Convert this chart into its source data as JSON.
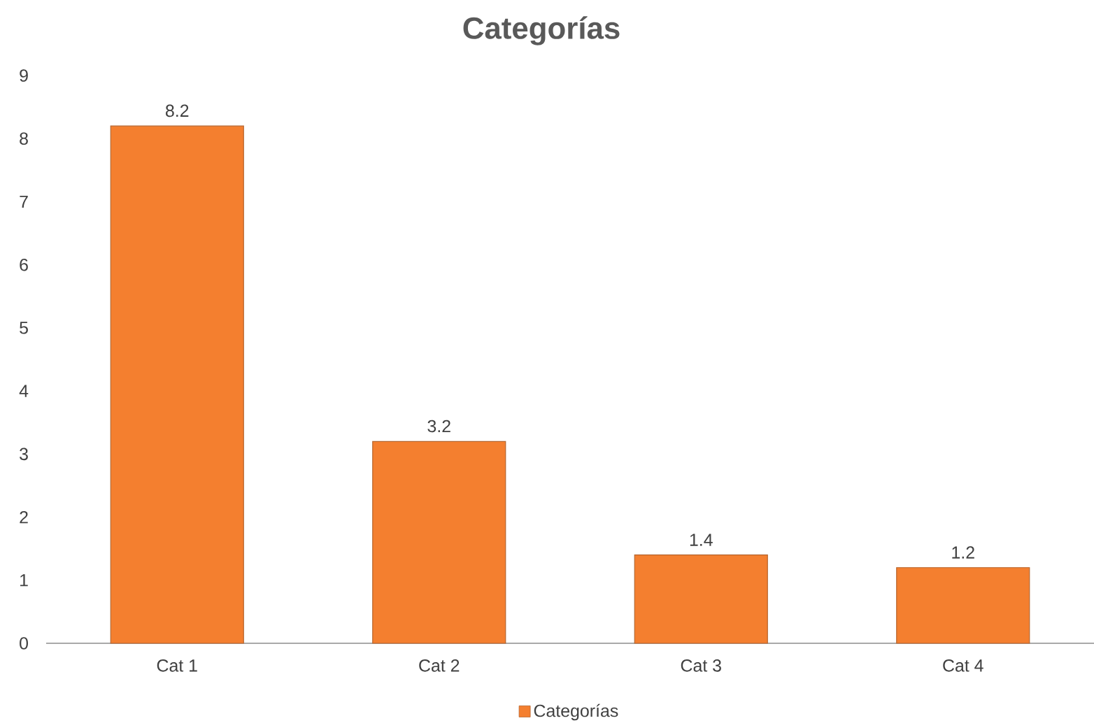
{
  "chart_data": {
    "type": "bar",
    "title": "Categorías",
    "categories": [
      "Cat 1",
      "Cat 2",
      "Cat 3",
      "Cat 4"
    ],
    "series": [
      {
        "name": "Categorías",
        "color": "#f47f2f",
        "values": [
          8.2,
          3.2,
          1.4,
          1.2
        ]
      }
    ],
    "ylim": [
      0,
      9
    ],
    "yticks": [
      0,
      1,
      2,
      3,
      4,
      5,
      6,
      7,
      8,
      9
    ],
    "data_labels": true,
    "legend": "bottom"
  }
}
